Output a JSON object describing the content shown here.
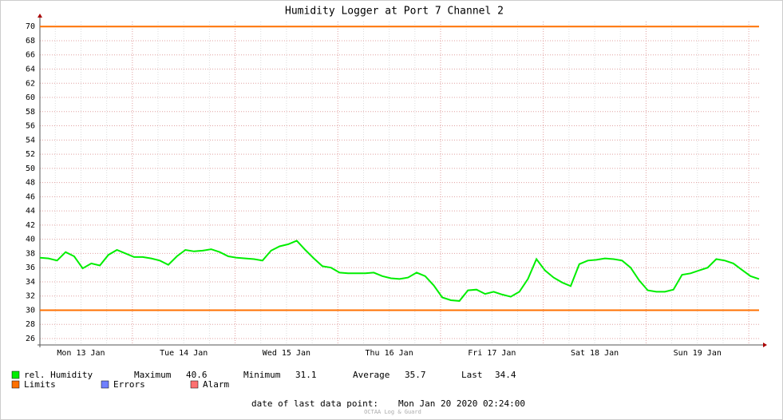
{
  "chart_data": {
    "type": "line",
    "title": "Humidity Logger at Port 7 Channel 2",
    "x_labels": [
      "Mon 13 Jan",
      "Tue 14 Jan",
      "Wed 15 Jan",
      "Thu 16 Jan",
      "Fri 17 Jan",
      "Sat 18 Jan",
      "Sun 19 Jan"
    ],
    "series": [
      {
        "name": "rel. Humidity",
        "color": "#00ee00",
        "values": [
          37.4,
          37.3,
          37.0,
          38.2,
          37.6,
          35.9,
          36.6,
          36.3,
          37.8,
          38.5,
          38.0,
          37.5,
          37.5,
          37.3,
          37.0,
          36.4,
          37.6,
          38.5,
          38.3,
          38.4,
          38.6,
          38.2,
          37.6,
          37.4,
          37.3,
          37.2,
          37.0,
          38.4,
          39.0,
          39.3,
          39.8,
          38.5,
          37.3,
          36.2,
          36.0,
          35.3,
          35.2,
          35.2,
          35.2,
          35.3,
          34.8,
          34.5,
          34.4,
          34.6,
          35.3,
          34.8,
          33.5,
          31.8,
          31.4,
          31.3,
          32.8,
          32.9,
          32.3,
          32.6,
          32.2,
          31.9,
          32.6,
          34.4,
          37.2,
          35.6,
          34.6,
          33.9,
          33.4,
          36.5,
          37.0,
          37.1,
          37.3,
          37.2,
          37.0,
          36.0,
          34.2,
          32.8,
          32.6,
          32.6,
          32.9,
          35.0,
          35.2,
          35.6,
          36.0,
          37.2,
          37.0,
          36.6,
          35.7,
          34.8,
          34.4
        ]
      }
    ],
    "limits": {
      "name": "Limits",
      "color": "#ff7000",
      "values": [
        70,
        30
      ]
    },
    "other_legend": [
      {
        "name": "Errors",
        "color": "#7080ff"
      },
      {
        "name": "Alarm",
        "color": "#ff7070"
      }
    ],
    "stats": [
      {
        "label": "Maximum",
        "value": 40.6
      },
      {
        "label": "Minimum",
        "value": 31.1
      },
      {
        "label": "Average",
        "value": 35.7
      },
      {
        "label": "Last",
        "value": 34.4
      }
    ],
    "last_point_label": "date of last data point:",
    "last_point": "Mon Jan 20 2020 02:24:00",
    "watermark": "OCTAA Log & Guard",
    "ylim": [
      25.1,
      70.7
    ],
    "yticks": [
      26,
      28,
      30,
      32,
      34,
      36,
      38,
      40,
      42,
      44,
      46,
      48,
      50,
      52,
      54,
      56,
      58,
      60,
      62,
      64,
      66,
      68,
      70
    ],
    "grid": true
  }
}
